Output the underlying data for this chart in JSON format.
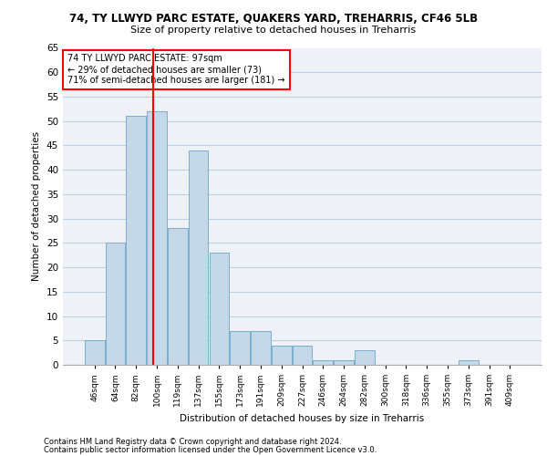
{
  "title1": "74, TY LLWYD PARC ESTATE, QUAKERS YARD, TREHARRIS, CF46 5LB",
  "title2": "Size of property relative to detached houses in Treharris",
  "xlabel": "Distribution of detached houses by size in Treharris",
  "ylabel": "Number of detached properties",
  "categories": [
    "46sqm",
    "64sqm",
    "82sqm",
    "100sqm",
    "119sqm",
    "137sqm",
    "155sqm",
    "173sqm",
    "191sqm",
    "209sqm",
    "227sqm",
    "246sqm",
    "264sqm",
    "282sqm",
    "300sqm",
    "318sqm",
    "336sqm",
    "355sqm",
    "373sqm",
    "391sqm",
    "409sqm"
  ],
  "values": [
    5,
    25,
    51,
    52,
    28,
    44,
    23,
    7,
    7,
    4,
    4,
    1,
    1,
    3,
    0,
    0,
    0,
    0,
    1,
    0,
    0
  ],
  "bar_color": "#c5d8e8",
  "bar_edge_color": "#7aadcc",
  "annotation_text": "74 TY LLWYD PARC ESTATE: 97sqm\n← 29% of detached houses are smaller (73)\n71% of semi-detached houses are larger (181) →",
  "annotation_box_color": "white",
  "annotation_box_edge": "red",
  "vline_color": "red",
  "vline_x": 2.83,
  "ylim": [
    0,
    65
  ],
  "yticks": [
    0,
    5,
    10,
    15,
    20,
    25,
    30,
    35,
    40,
    45,
    50,
    55,
    60,
    65
  ],
  "footer1": "Contains HM Land Registry data © Crown copyright and database right 2024.",
  "footer2": "Contains public sector information licensed under the Open Government Licence v3.0.",
  "background_color": "#eef2f8",
  "grid_color": "#c0cfe0"
}
